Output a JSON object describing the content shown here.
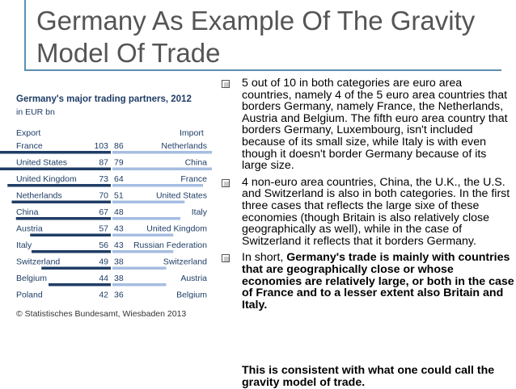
{
  "slide": {
    "title": "Germany As Example Of The Gravity Model Of Trade",
    "accent_color": "#5a8fb2"
  },
  "bullets": [
    {
      "text": "5 out of 10 in both categories are euro area countries, namely 4 of the 5 euro area countries that borders Germany, namely France, the Netherlands, Austria and Belgium. The fifth euro area country that borders Germany, Luxembourg, isn't included because of its small size, while Italy is with even though it doesn't border Germany because of its large size."
    },
    {
      "text": "4 non-euro area countries, China, the U.K., the U.S. and Switzerland is also in both categories. In the first three cases that reflects the large sixe of these economies (though Britain is also relatively close geographically as well), while in the case of Switzerland it reflects that it borders Germany."
    },
    {
      "prefix": "In short, ",
      "bold_text": "Germany's trade is mainly with countries that are geographically close or whose economies are relatively large, or both in the case of France and to a lesser extent also Britain and Italy."
    }
  ],
  "extra_text": "This is consistent with what one could call the gravity model of trade.",
  "chart_data": {
    "type": "bar",
    "title": "Germany's major trading partners, 2012",
    "unit": "in EUR bn",
    "source": "© Statistisches Bundesamt, Wiesbaden 2013",
    "export_label": "Export",
    "import_label": "Import",
    "export_color": "#1f3d66",
    "import_color": "#a6bde0",
    "xlim": [
      0,
      110
    ],
    "rows": [
      {
        "export_country": "France",
        "export": 103,
        "import": 86,
        "import_country": "Netherlands"
      },
      {
        "export_country": "United States",
        "export": 87,
        "import": 79,
        "import_country": "China"
      },
      {
        "export_country": "United Kingdom",
        "export": 73,
        "import": 64,
        "import_country": "France"
      },
      {
        "export_country": "Netherlands",
        "export": 70,
        "import": 51,
        "import_country": "United States"
      },
      {
        "export_country": "China",
        "export": 67,
        "import": 48,
        "import_country": "Italy"
      },
      {
        "export_country": "Austria",
        "export": 57,
        "import": 43,
        "import_country": "United Kingdom"
      },
      {
        "export_country": "Italy",
        "export": 56,
        "import": 43,
        "import_country": "Russian Federation"
      },
      {
        "export_country": "Switzerland",
        "export": 49,
        "import": 38,
        "import_country": "Switzerland"
      },
      {
        "export_country": "Belgium",
        "export": 44,
        "import": 38,
        "import_country": "Austria"
      },
      {
        "export_country": "Poland",
        "export": 42,
        "import": 36,
        "import_country": "Belgium"
      }
    ]
  }
}
